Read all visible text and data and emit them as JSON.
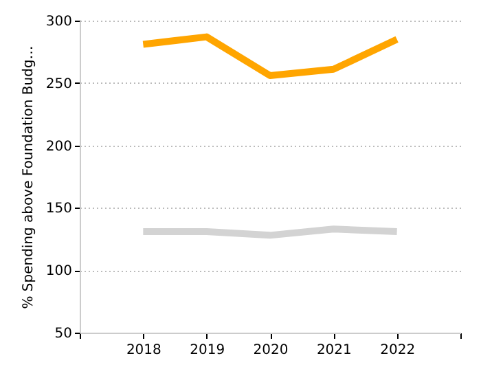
{
  "chart_data": {
    "type": "line",
    "ylabel": "% Spending above Foundation Budg…",
    "x": [
      2018,
      2019,
      2020,
      2021,
      2022
    ],
    "series": [
      {
        "color": "#ffa500",
        "values": [
          281,
          287,
          256,
          261,
          285
        ]
      },
      {
        "color": "#d3d3d3",
        "values": [
          131,
          131,
          128,
          133,
          131
        ]
      }
    ],
    "xlim": [
      2017,
      2023
    ],
    "xticks": [
      {
        "value": 2017,
        "label": null
      },
      2018,
      2019,
      2020,
      2021,
      2022,
      {
        "value": 2023,
        "label": null
      }
    ],
    "ylim": [
      50,
      300
    ],
    "yticks": [
      50,
      100,
      150,
      200,
      250,
      300
    ],
    "grid": "y",
    "marker": "none",
    "line_style": "solid"
  }
}
